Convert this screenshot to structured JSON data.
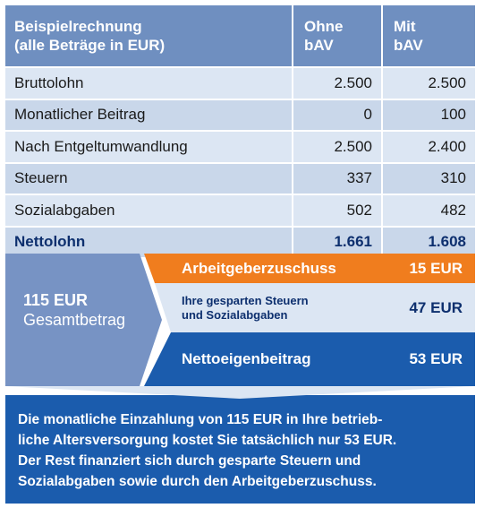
{
  "table": {
    "header": {
      "col1": "Beispielrechnung\n(alle Beträge in EUR)",
      "col2": "Ohne\nbAV",
      "col3": "Mit\nbAV"
    },
    "rows": [
      {
        "label": "Bruttolohn",
        "ohne": "2.500",
        "mit": "2.500"
      },
      {
        "label": "Monatlicher Beitrag",
        "ohne": "0",
        "mit": "100"
      },
      {
        "label": "Nach Entgeltumwandlung",
        "ohne": "2.500",
        "mit": "2.400"
      },
      {
        "label": "Steuern",
        "ohne": "337",
        "mit": "310"
      },
      {
        "label": "Sozialabgaben",
        "ohne": "502",
        "mit": "482"
      },
      {
        "label": "Nettolohn",
        "ohne": "1.661",
        "mit": "1.608"
      }
    ]
  },
  "breakdown": {
    "total_amount": "115 EUR",
    "total_label": "Gesamtbetrag",
    "items": [
      {
        "label": "Arbeitgeberzuschuss",
        "value": "15 EUR"
      },
      {
        "label": "Ihre gesparten Steuern\nund Sozialabgaben",
        "value": "47 EUR"
      },
      {
        "label": "Nettoeigenbeitrag",
        "value": "53 EUR"
      }
    ]
  },
  "summary": {
    "text": "Die monatliche Einzahlung von 115 EUR in Ihre betrieb-\nliche Altersversorgung kostet Sie tatsächlich nur 53 EUR.\nDer Rest finanziert sich durch gesparte Steuern und\nSozialabgaben sowie durch den Arbeitgeberzuschuss."
  },
  "colors": {
    "header_blue": "#6f8fc0",
    "row_light": "#dce6f3",
    "orange": "#f07d1e",
    "dark_blue": "#1b5cad"
  }
}
